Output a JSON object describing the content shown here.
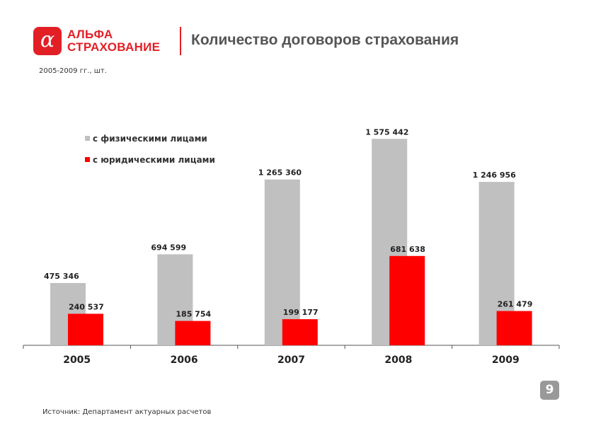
{
  "brand": {
    "name_line1": "АЛЬФА",
    "name_line2": "СТРАХОВАНИЕ",
    "mark": "α",
    "color": "#e31f26"
  },
  "header": {
    "title": "Количество договоров страхования",
    "subtitle": "2005-2009 гг., шт."
  },
  "footer": {
    "source": "Источник: Департамент актуарных расчетов",
    "page_number": "9"
  },
  "chart_data": {
    "type": "bar",
    "title": "Количество договоров страхования",
    "categories": [
      "2005",
      "2006",
      "2007",
      "2008",
      "2009"
    ],
    "series": [
      {
        "name": "с физическими лицами",
        "color": "#c0c0c0",
        "values": [
          475346,
          694599,
          1265360,
          1575442,
          1246956
        ],
        "labels": [
          "475 346",
          "694 599",
          "1 265 360",
          "1 575 442",
          "1 246 956"
        ]
      },
      {
        "name": "с юридическими лицами",
        "color": "#ff0000",
        "values": [
          240537,
          185754,
          199177,
          681638,
          261479
        ],
        "labels": [
          "240 537",
          "185 754",
          "199 177",
          "681 638",
          "261 479"
        ]
      }
    ],
    "ylim": [
      0,
      1620000
    ],
    "grid": false,
    "legend": "top-left"
  }
}
